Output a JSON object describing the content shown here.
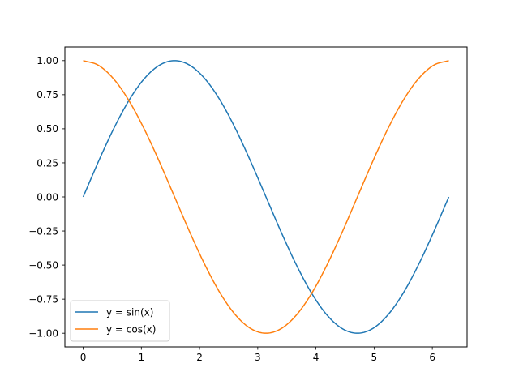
{
  "chart_data": {
    "type": "line",
    "title": "",
    "xlabel": "",
    "ylabel": "",
    "xlim": [
      -0.3142,
      6.5973
    ],
    "ylim": [
      -1.1,
      1.1
    ],
    "x_ticks": [
      0,
      1,
      2,
      3,
      4,
      5,
      6
    ],
    "x_tick_labels": [
      "0",
      "1",
      "2",
      "3",
      "4",
      "5",
      "6"
    ],
    "y_ticks": [
      1.0,
      0.75,
      0.5,
      0.25,
      0.0,
      -0.25,
      -0.5,
      -0.75,
      -1.0
    ],
    "y_tick_labels": [
      "1.00",
      "0.75",
      "0.50",
      "0.25",
      "0.00",
      "−0.25",
      "−0.50",
      "−0.75",
      "−1.00"
    ],
    "grid": false,
    "legend_position": "lower-left",
    "x": [
      0,
      0.2618,
      0.5236,
      0.7854,
      1.0472,
      1.309,
      1.5708,
      1.8326,
      2.0944,
      2.3562,
      2.618,
      2.8798,
      3.1416,
      3.4034,
      3.6652,
      3.927,
      4.1888,
      4.4506,
      4.7124,
      4.9742,
      5.236,
      5.4978,
      5.7596,
      6.0214,
      6.2832
    ],
    "series": [
      {
        "name": "y = sin(x)",
        "color": "#1f77b4",
        "values": [
          0,
          0.2588,
          0.5,
          0.7071,
          0.866,
          0.9659,
          1,
          0.9659,
          0.866,
          0.7071,
          0.5,
          0.2588,
          0,
          -0.2588,
          -0.5,
          -0.7071,
          -0.866,
          -0.9659,
          -1,
          -0.9659,
          -0.866,
          -0.7071,
          -0.5,
          -0.2588,
          0
        ]
      },
      {
        "name": "y = cos(x)",
        "color": "#ff7f0e",
        "values": [
          1,
          0.9659,
          0.866,
          0.7071,
          0.5,
          0.2588,
          0,
          -0.2588,
          -0.5,
          -0.7071,
          -0.866,
          -0.9659,
          -1,
          -0.9659,
          -0.866,
          -0.7071,
          -0.5,
          -0.2588,
          0,
          0.2588,
          0.5,
          0.7071,
          0.866,
          0.9659,
          1
        ]
      }
    ]
  }
}
